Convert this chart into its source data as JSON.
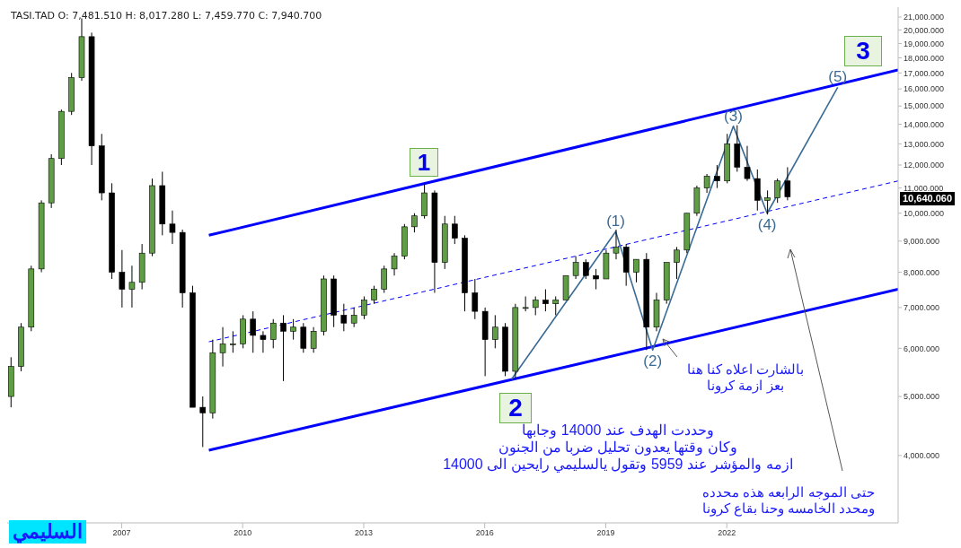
{
  "chart_data": {
    "type": "candlestick",
    "xlim": [
      "2004-03",
      "2026-04"
    ],
    "xticks": [
      "2007",
      "2010",
      "2013",
      "2016",
      "2019",
      "2022"
    ],
    "ylim": [
      3100,
      21800
    ],
    "log": "y",
    "yticks": [
      {
        "value": 4000,
        "label": "4,000.000"
      },
      {
        "value": 5000,
        "label": "5,000.000"
      },
      {
        "value": 6000,
        "label": "6,000.000"
      },
      {
        "value": 7000,
        "label": "7,000.000"
      },
      {
        "value": 8000,
        "label": "8,000.000"
      },
      {
        "value": 9000,
        "label": "9,000.000"
      },
      {
        "value": 10000,
        "label": "10,000.000"
      },
      {
        "value": 11000,
        "label": "11,000.000"
      },
      {
        "value": 12000,
        "label": "12,000.000"
      },
      {
        "value": 13000,
        "label": "13,000.000"
      },
      {
        "value": 14000,
        "label": "14,000.000"
      },
      {
        "value": 15000,
        "label": "15,000.000"
      },
      {
        "value": 16000,
        "label": "16,000.000"
      },
      {
        "value": 17000,
        "label": "17,000.000"
      },
      {
        "value": 18000,
        "label": "18,000.000"
      },
      {
        "value": 19000,
        "label": "19,000.000"
      },
      {
        "value": 20000,
        "label": "20,000.000"
      },
      {
        "value": 21000,
        "label": "21,000.000"
      }
    ],
    "series": [
      {
        "colors": [
          "#5f9e45",
          "#5f9e45",
          "#5f9e45",
          "#5f9e45",
          "#5f9e45",
          "#5f9e45",
          "#5f9e45",
          "#5f9e45",
          "#000000",
          "#000000",
          "#000000",
          "#000000",
          "#5f9e45",
          "#5f9e45",
          "#5f9e45",
          "#000000",
          "#000000",
          "#000000",
          "#000000",
          "#000000",
          "#5f9e45",
          "#5f9e45",
          "#5f9e45",
          "#5f9e45",
          "#000000",
          "#000000",
          "#5f9e45",
          "#000000",
          "#5f9e45",
          "#000000",
          "#5f9e45",
          "#5f9e45",
          "#000000",
          "#000000",
          "#5f9e45",
          "#5f9e45",
          "#5f9e45",
          "#5f9e45",
          "#5f9e45",
          "#5f9e45",
          "#5f9e45",
          "#5f9e45",
          "#000000",
          "#5f9e45",
          "#000000",
          "#000000",
          "#000000",
          "#000000",
          "#5f9e45",
          "#000000",
          "#5f9e45",
          "#5f9e45",
          "#5f9e45",
          "#000000",
          "#5f9e45",
          "#5f9e45",
          "#5f9e45",
          "#000000",
          "#000000",
          "#5f9e45",
          "#5f9e45",
          "#000000",
          "#5f9e45",
          "#000000",
          "#5f9e45",
          "#5f9e45",
          "#5f9e45",
          "#5f9e45",
          "#5f9e45",
          "#5f9e45",
          "#000000",
          "#5f9e45",
          "#000000",
          "#000000",
          "#000000",
          "#5f9e45",
          "#5f9e45",
          "#000000"
        ],
        "x": [
          "2004-04",
          "2004-07",
          "2004-10",
          "2005-01",
          "2005-04",
          "2005-07",
          "2005-10",
          "2006-01",
          "2006-04",
          "2006-07",
          "2006-10",
          "2007-01",
          "2007-04",
          "2007-07",
          "2007-10",
          "2008-01",
          "2008-04",
          "2008-07",
          "2008-10",
          "2009-01",
          "2009-04",
          "2009-07",
          "2009-10",
          "2010-01",
          "2010-04",
          "2010-07",
          "2010-10",
          "2011-01",
          "2011-04",
          "2011-07",
          "2011-10",
          "2012-01",
          "2012-04",
          "2012-07",
          "2012-10",
          "2013-01",
          "2013-04",
          "2013-07",
          "2013-10",
          "2014-01",
          "2014-04",
          "2014-07",
          "2014-10",
          "2015-01",
          "2015-04",
          "2015-07",
          "2015-10",
          "2016-01",
          "2016-04",
          "2016-07",
          "2016-10",
          "2017-01",
          "2017-04",
          "2017-07",
          "2017-10",
          "2018-01",
          "2018-04",
          "2018-07",
          "2018-10",
          "2019-01",
          "2019-04",
          "2019-07",
          "2019-10",
          "2020-01",
          "2020-04",
          "2020-07",
          "2020-10",
          "2021-01",
          "2021-04",
          "2021-07",
          "2021-10",
          "2022-01",
          "2022-04",
          "2022-07",
          "2022-10",
          "2023-01",
          "2023-04",
          "2023-07"
        ],
        "ohlc": [
          [
            5000,
            5800,
            4800,
            5600
          ],
          [
            5600,
            6600,
            5500,
            6500
          ],
          [
            6500,
            8200,
            6400,
            8100
          ],
          [
            8100,
            10500,
            8000,
            10400
          ],
          [
            10400,
            12500,
            10200,
            12300
          ],
          [
            12300,
            14800,
            12000,
            14700
          ],
          [
            14700,
            17000,
            14500,
            16700
          ],
          [
            16700,
            20900,
            16500,
            19500
          ],
          [
            19500,
            19800,
            12000,
            12900
          ],
          [
            12900,
            13500,
            10500,
            10800
          ],
          [
            10800,
            11200,
            7800,
            8000
          ],
          [
            8000,
            8700,
            7000,
            7500
          ],
          [
            7500,
            8200,
            7000,
            7700
          ],
          [
            7700,
            8900,
            7500,
            8600
          ],
          [
            8600,
            11400,
            8500,
            11100
          ],
          [
            11100,
            11700,
            9200,
            9600
          ],
          [
            9600,
            10100,
            8900,
            9300
          ],
          [
            9300,
            9400,
            7000,
            7400
          ],
          [
            7400,
            7600,
            4800,
            4800
          ],
          [
            4800,
            5000,
            4130,
            4700
          ],
          [
            4700,
            6200,
            4600,
            5900
          ],
          [
            5900,
            6500,
            5600,
            6100
          ],
          [
            6100,
            6400,
            5900,
            6100
          ],
          [
            6100,
            6800,
            6000,
            6700
          ],
          [
            6700,
            6900,
            5900,
            6300
          ],
          [
            6300,
            6400,
            5900,
            6200
          ],
          [
            6200,
            6700,
            6000,
            6600
          ],
          [
            6600,
            6800,
            5300,
            6400
          ],
          [
            6400,
            6700,
            6200,
            6500
          ],
          [
            6500,
            6600,
            5900,
            6000
          ],
          [
            6000,
            6500,
            5900,
            6400
          ],
          [
            6400,
            7900,
            6300,
            7800
          ],
          [
            7800,
            7900,
            6500,
            6800
          ],
          [
            6800,
            7100,
            6400,
            6600
          ],
          [
            6600,
            7000,
            6500,
            6800
          ],
          [
            6800,
            7300,
            6700,
            7200
          ],
          [
            7200,
            7600,
            7100,
            7500
          ],
          [
            7500,
            8200,
            7400,
            8100
          ],
          [
            8100,
            8600,
            7900,
            8500
          ],
          [
            8500,
            9600,
            8400,
            9500
          ],
          [
            9500,
            10000,
            9300,
            9900
          ],
          [
            9900,
            11150,
            9800,
            10800
          ],
          [
            10800,
            10900,
            7400,
            8300
          ],
          [
            8300,
            9900,
            8100,
            9600
          ],
          [
            9600,
            9900,
            8900,
            9100
          ],
          [
            9100,
            9200,
            6900,
            7400
          ],
          [
            7400,
            7800,
            6700,
            6900
          ],
          [
            6900,
            7000,
            5400,
            6200
          ],
          [
            6200,
            6800,
            6000,
            6500
          ],
          [
            6500,
            6600,
            5400,
            5500
          ],
          [
            5500,
            7100,
            5350,
            7000
          ],
          [
            7000,
            7300,
            6900,
            7000
          ],
          [
            7000,
            7300,
            6800,
            7200
          ],
          [
            7200,
            7500,
            6900,
            7100
          ],
          [
            7100,
            7300,
            6800,
            7200
          ],
          [
            7200,
            7900,
            7200,
            7900
          ],
          [
            7900,
            8500,
            7800,
            8300
          ],
          [
            8300,
            8400,
            7800,
            7900
          ],
          [
            7900,
            8100,
            7500,
            7800
          ],
          [
            7800,
            8700,
            7800,
            8600
          ],
          [
            8600,
            9400,
            8400,
            8800
          ],
          [
            8800,
            8900,
            7600,
            8000
          ],
          [
            8000,
            8400,
            7700,
            8400
          ],
          [
            8400,
            8600,
            5959,
            6500
          ],
          [
            6500,
            7400,
            6400,
            7200
          ],
          [
            7200,
            8300,
            7100,
            8300
          ],
          [
            8300,
            8800,
            7800,
            8700
          ],
          [
            8700,
            10000,
            8600,
            10000
          ],
          [
            10000,
            11100,
            9900,
            11000
          ],
          [
            11000,
            11600,
            10800,
            11500
          ],
          [
            11500,
            12000,
            11000,
            11300
          ],
          [
            11300,
            13500,
            11200,
            13000
          ],
          [
            13000,
            13950,
            11700,
            11900
          ],
          [
            11900,
            12900,
            11300,
            11400
          ],
          [
            11400,
            11800,
            10100,
            10500
          ],
          [
            10500,
            10900,
            9950,
            10600
          ],
          [
            10600,
            11400,
            10400,
            11300
          ],
          [
            11300,
            11900,
            10500,
            10640
          ]
        ]
      },
      {
        "type": "line",
        "color": "#0000ff",
        "x": [
          "2009-03",
          "2026-04"
        ],
        "values": [
          9200,
          17200
        ]
      },
      {
        "type": "line",
        "color": "#0000ff",
        "x": [
          "2009-03",
          "2026-04"
        ],
        "values": [
          4080,
          7500
        ]
      },
      {
        "type": "line",
        "color": "#0000ff",
        "line_style": "dashed",
        "x": [
          "2009-03",
          "2026-04"
        ],
        "values": [
          6150,
          11300
        ]
      },
      {
        "type": "line",
        "color": "#3a6b95",
        "x": [
          "2016-09",
          "2019-04",
          "2020-03",
          "2022-03",
          "2023-01",
          "2024-10"
        ],
        "values": [
          5340,
          9330,
          5959,
          13900,
          10000,
          16100
        ]
      }
    ],
    "annotations": [
      "TASI.TAD   O: 7,481.510  H: 8,017.280  L: 7,459.770  C: 7,940.700",
      "10,640.060",
      "بالشارت اعلاه كنا هنا\nبعز ازمة كرونا",
      "وحددت الهدف عند 14000 وجابها\nوكان وقتها يعدون تحليل ضربا من الجنون\nازمه والمؤشر عند 5959 وتقول يالسليمي رايحين الى 14000",
      "حتى الموجه الرابعه هذه محدده\nومحدد الخامسه وحنا بقاع كرونا",
      "السليمي",
      "1",
      "2",
      "3",
      {
        "text": "(1)",
        "x": "2019-04",
        "y": 9330
      },
      {
        "text": "(2)",
        "x": "2020-03",
        "y": 5959
      },
      {
        "text": "(3)",
        "x": "2022-03",
        "y": 13900
      },
      {
        "text": "(4)",
        "x": "2023-01",
        "y": 10000
      },
      {
        "text": "(5)",
        "x": "2024-10",
        "y": 16100
      }
    ]
  }
}
